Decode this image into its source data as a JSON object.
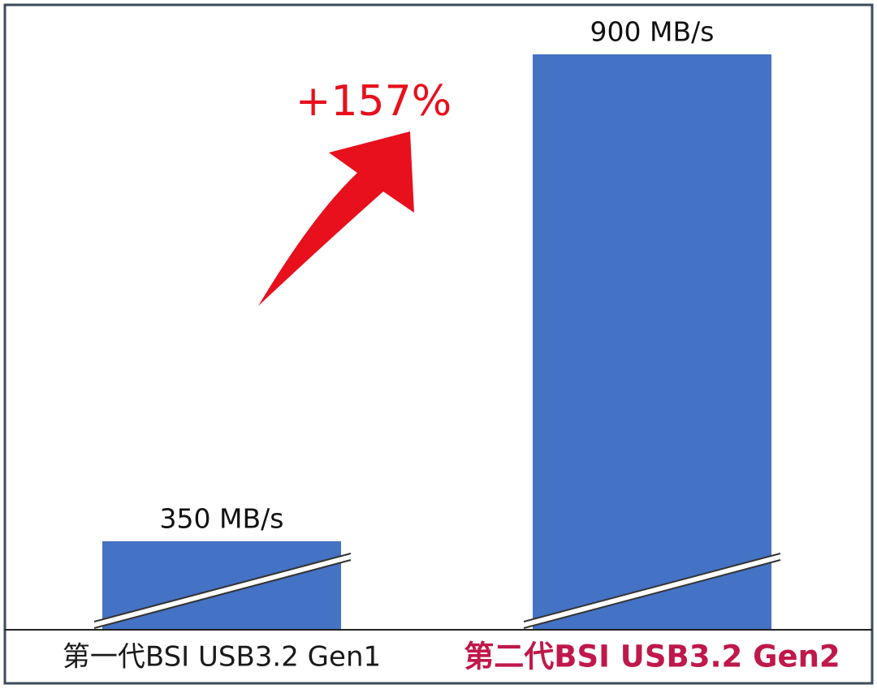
{
  "chart_data": {
    "type": "bar",
    "categories": [
      "第一代BSI USB3.2 Gen1",
      "第二代BSI USB3.2 Gen2"
    ],
    "category_colors": [
      "#1a1a1a",
      "#c0184a"
    ],
    "values": [
      350,
      900
    ],
    "value_labels": [
      "350 MB/s",
      "900 MB/s"
    ],
    "color": "#4472c4",
    "ylim": [
      250,
      900
    ],
    "annotation": "+157%",
    "annotation_color": "#e8101c"
  }
}
